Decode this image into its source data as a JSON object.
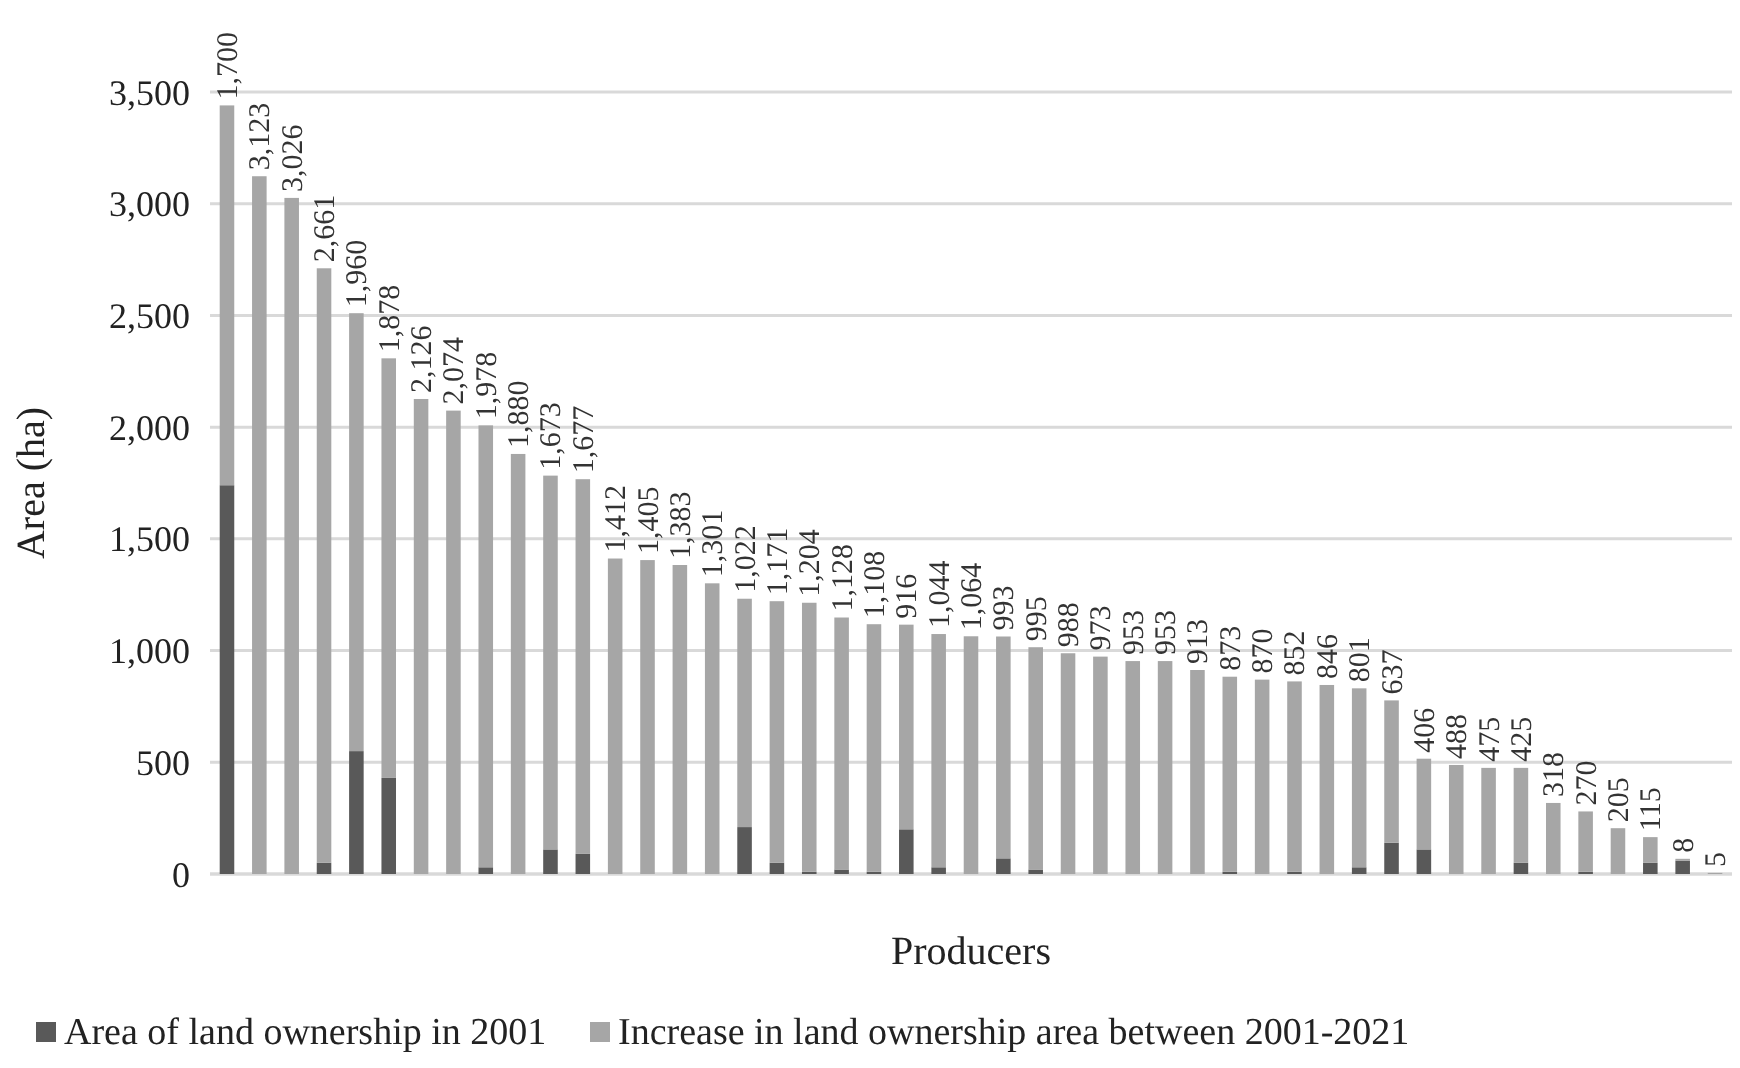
{
  "chart_data": {
    "type": "bar",
    "stacked": true,
    "xlabel": "Producers",
    "ylabel": "Area (ha)",
    "categories": [
      null,
      null,
      null,
      null,
      null,
      null,
      null,
      null,
      null,
      null,
      null,
      null,
      null,
      null,
      null,
      null,
      null,
      null,
      null,
      null,
      null,
      null,
      null,
      null,
      null,
      null,
      null,
      null,
      null,
      null,
      null,
      null,
      null,
      null,
      null,
      null,
      null,
      null,
      null,
      null,
      null,
      null,
      null,
      null,
      null,
      null,
      null
    ],
    "series": [
      {
        "name": "Area of land ownership in 2001",
        "color": "#595959",
        "values": [
          1740,
          0,
          0,
          50,
          550,
          430,
          0,
          0,
          30,
          0,
          110,
          90,
          0,
          0,
          0,
          0,
          210,
          50,
          10,
          20,
          10,
          200,
          30,
          0,
          70,
          20,
          0,
          0,
          0,
          0,
          0,
          10,
          0,
          10,
          0,
          30,
          140,
          110,
          0,
          0,
          50,
          0,
          10,
          0,
          50,
          60,
          0
        ]
      },
      {
        "name": "Increase in land ownership area between 2001-2021",
        "color": "#a6a6a6",
        "values": [
          1700,
          3123,
          3026,
          2661,
          1960,
          1878,
          2126,
          2074,
          1978,
          1880,
          1673,
          1677,
          1412,
          1405,
          1383,
          1301,
          1022,
          1171,
          1204,
          1128,
          1108,
          916,
          1044,
          1064,
          993,
          995,
          988,
          973,
          953,
          953,
          913,
          873,
          870,
          852,
          846,
          801,
          637,
          406,
          488,
          475,
          425,
          318,
          270,
          205,
          115,
          8,
          5
        ],
        "value_labels": [
          "1,700",
          "3,123",
          "3,026",
          "2,661",
          "1,960",
          "1,878",
          "2,126",
          "2,074",
          "1,978",
          "1,880",
          "1,673",
          "1,677",
          "1,412",
          "1,405",
          "1,383",
          "1,301",
          "1,022",
          "1,171",
          "1,204",
          "1,128",
          "1,108",
          "916",
          "1,044",
          "1,064",
          "993",
          "995",
          "988",
          "973",
          "953",
          "953",
          "913",
          "873",
          "870",
          "852",
          "846",
          "801",
          "637",
          "406",
          "488",
          "475",
          "425",
          "318",
          "270",
          "205",
          "115",
          "8",
          "5"
        ]
      }
    ],
    "ylim": [
      0,
      3500
    ],
    "yticks": [
      0,
      500,
      {
        "value": 1000,
        "label": "1,000"
      },
      {
        "value": 1500,
        "label": "1,500"
      },
      {
        "value": 2000,
        "label": "2,000"
      },
      {
        "value": 2500,
        "label": "2,500"
      },
      {
        "value": 3000,
        "label": "3,000"
      },
      {
        "value": 3500,
        "label": "3,500"
      }
    ],
    "grid": "y",
    "legend": "bottom"
  }
}
